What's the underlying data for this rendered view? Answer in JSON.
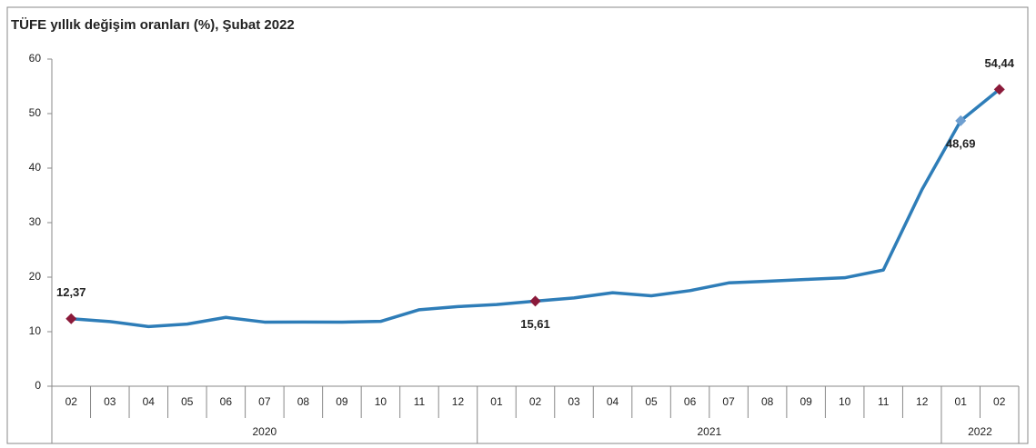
{
  "chart_data": {
    "type": "line",
    "title": "TÜFE yıllık değişim oranları (%), Şubat 2022",
    "categories": [
      "02",
      "03",
      "04",
      "05",
      "06",
      "07",
      "08",
      "09",
      "10",
      "11",
      "12",
      "01",
      "02",
      "03",
      "04",
      "05",
      "06",
      "07",
      "08",
      "09",
      "10",
      "11",
      "12",
      "01",
      "02"
    ],
    "x_groups": [
      {
        "label": "2020",
        "count": 11
      },
      {
        "label": "2021",
        "count": 12
      },
      {
        "label": "2022",
        "count": 2
      }
    ],
    "series": [
      {
        "name": "TÜFE",
        "color": "#2e7db8",
        "values": [
          12.37,
          11.86,
          10.94,
          11.39,
          12.62,
          11.76,
          11.77,
          11.75,
          11.89,
          14.03,
          14.6,
          14.97,
          15.61,
          16.19,
          17.14,
          16.59,
          17.53,
          18.95,
          19.25,
          19.58,
          19.89,
          21.31,
          36.08,
          48.69,
          54.44
        ],
        "value_labels": [
          "12,37",
          null,
          null,
          null,
          null,
          null,
          null,
          null,
          null,
          null,
          null,
          null,
          "15,61",
          null,
          null,
          null,
          null,
          null,
          null,
          null,
          null,
          null,
          null,
          "48,69",
          "54,44"
        ],
        "marker_colors": [
          "#8b1a3a",
          null,
          null,
          null,
          null,
          null,
          null,
          null,
          null,
          null,
          null,
          null,
          "#8b1a3a",
          null,
          null,
          null,
          null,
          null,
          null,
          null,
          null,
          null,
          null,
          "#6f9fd0",
          "#8b1a3a"
        ]
      }
    ],
    "ylim": [
      0,
      60
    ],
    "yticks": [
      0,
      10,
      20,
      30,
      40,
      50,
      60
    ]
  }
}
